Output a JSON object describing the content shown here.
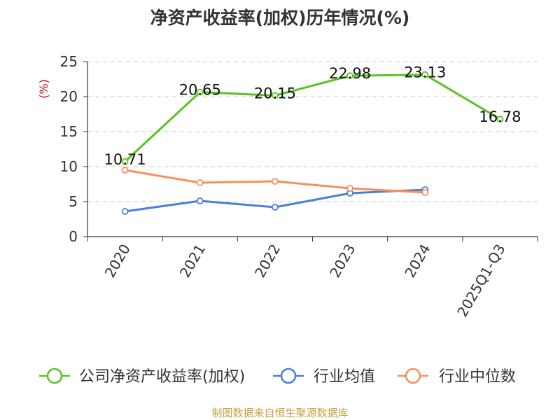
{
  "source_text": "制图数据来自恒生聚源数据库",
  "chart_data": {
    "type": "line",
    "title": "净资产收益率(加权)历年情况(%)",
    "ylabel": "(%)",
    "xlabel": "",
    "categories": [
      "2020",
      "2021",
      "2022",
      "2023",
      "2024",
      "2025Q1-Q3"
    ],
    "ylim": [
      0,
      25
    ],
    "yticks": [
      0,
      5,
      10,
      15,
      20,
      25
    ],
    "grid": true,
    "legend_position": "bottom",
    "series": [
      {
        "name": "公司净资产收益率(加权)",
        "color": "#5bc224",
        "values": [
          10.71,
          20.65,
          20.15,
          22.98,
          23.13,
          16.78
        ],
        "labels": [
          "10.71",
          "20.65",
          "20.15",
          "22.98",
          "23.13",
          "16.78"
        ]
      },
      {
        "name": "行业均值",
        "color": "#4a7fd8",
        "values": [
          3.6,
          5.1,
          4.2,
          6.2,
          6.7,
          null
        ],
        "labels": null
      },
      {
        "name": "行业中位数",
        "color": "#f5905a",
        "values": [
          9.5,
          7.7,
          7.9,
          6.9,
          6.3,
          null
        ],
        "labels": null
      }
    ]
  }
}
